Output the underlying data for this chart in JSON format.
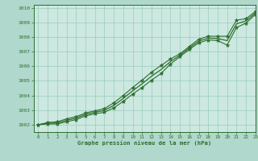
{
  "title": "Graphe pression niveau de la mer (hPa)",
  "bg_color": "#b0d8cc",
  "plot_bg_color": "#cce8e0",
  "grid_color": "#99ccbb",
  "line_color": "#2d6e2d",
  "marker_color": "#2d6e2d",
  "xlim": [
    -0.5,
    23
  ],
  "ylim": [
    1001.5,
    1010.2
  ],
  "xticks": [
    0,
    1,
    2,
    3,
    4,
    5,
    6,
    7,
    8,
    9,
    10,
    11,
    12,
    13,
    14,
    15,
    16,
    17,
    18,
    19,
    20,
    21,
    22,
    23
  ],
  "yticks": [
    1002,
    1003,
    1004,
    1005,
    1006,
    1007,
    1008,
    1009,
    1010
  ],
  "series1_x": [
    0,
    1,
    2,
    3,
    4,
    5,
    6,
    7,
    8,
    9,
    10,
    11,
    12,
    13,
    14,
    15,
    16,
    17,
    18,
    19,
    20,
    21,
    22,
    23
  ],
  "series1_y": [
    1002.0,
    1002.15,
    1002.2,
    1002.4,
    1002.55,
    1002.8,
    1002.95,
    1003.1,
    1003.5,
    1004.0,
    1004.55,
    1005.05,
    1005.6,
    1006.05,
    1006.5,
    1006.85,
    1007.35,
    1007.85,
    1008.05,
    1008.05,
    1008.05,
    1009.15,
    1009.25,
    1009.75
  ],
  "series2_x": [
    0,
    1,
    2,
    3,
    4,
    5,
    6,
    7,
    8,
    9,
    10,
    11,
    12,
    13,
    14,
    15,
    16,
    17,
    18,
    19,
    20,
    21,
    22,
    23
  ],
  "series2_y": [
    1002.0,
    1002.05,
    1002.05,
    1002.2,
    1002.35,
    1002.6,
    1002.75,
    1002.85,
    1003.15,
    1003.6,
    1004.1,
    1004.55,
    1005.05,
    1005.5,
    1006.15,
    1006.65,
    1007.15,
    1007.6,
    1007.8,
    1007.75,
    1007.45,
    1008.65,
    1008.95,
    1009.55
  ],
  "series3_x": [
    0,
    1,
    2,
    3,
    4,
    5,
    6,
    7,
    8,
    9,
    10,
    11,
    12,
    13,
    14,
    15,
    16,
    17,
    18,
    19,
    20,
    21,
    22,
    23
  ],
  "series3_y": [
    1002.0,
    1002.1,
    1002.12,
    1002.3,
    1002.45,
    1002.7,
    1002.85,
    1002.98,
    1003.32,
    1003.8,
    1004.32,
    1004.8,
    1005.32,
    1005.77,
    1006.32,
    1006.75,
    1007.25,
    1007.72,
    1007.92,
    1007.9,
    1007.75,
    1008.9,
    1009.1,
    1009.65
  ]
}
